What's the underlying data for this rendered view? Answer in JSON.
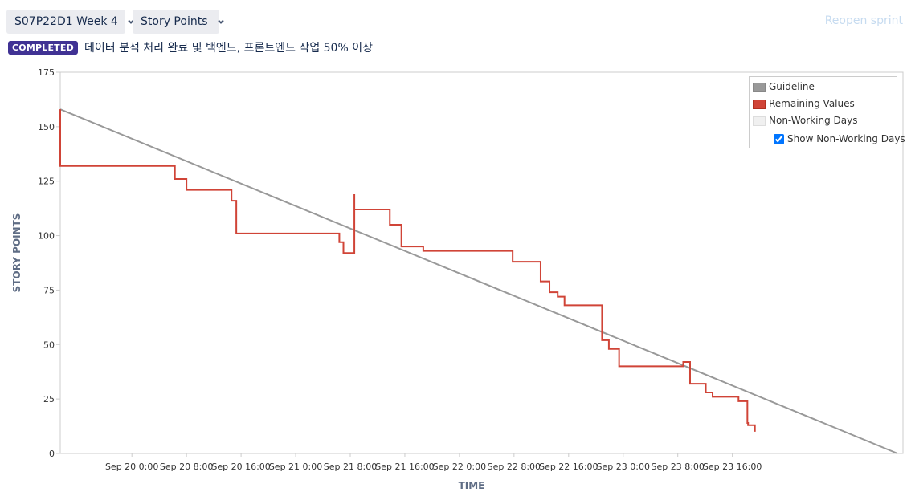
{
  "header": {
    "sprint_select": "S07P22D1 Week 4",
    "metric_select": "Story Points",
    "reopen_label": "Reopen sprint",
    "status_badge": "COMPLETED",
    "sprint_goal": "데이터 분석 처리 완료 및 백엔드, 프론트엔드 작업 50% 이상"
  },
  "legend": {
    "guideline": "Guideline",
    "remaining": "Remaining Values",
    "non_working": "Non-Working Days",
    "show_non_working": "Show Non-Working Days",
    "show_non_working_checked": true
  },
  "colors": {
    "guideline": "#999999",
    "remaining": "#d04437",
    "non_working": "#f0f0f0",
    "checkbox": "#0052cc",
    "badge": "#403294"
  },
  "chart_data": {
    "type": "line",
    "title": "",
    "xlabel": "TIME",
    "ylabel": "STORY POINTS",
    "ylim": [
      0,
      175
    ],
    "yticks": [
      0,
      25,
      50,
      75,
      100,
      125,
      150,
      175
    ],
    "xlim_hours": [
      -10.5,
      113
    ],
    "x_unit": "hours since Sep 20 0:00",
    "xticks": [
      {
        "label": "Sep 20 0:00",
        "h": 0
      },
      {
        "label": "Sep 20 8:00",
        "h": 8
      },
      {
        "label": "Sep 20 16:00",
        "h": 16
      },
      {
        "label": "Sep 21 0:00",
        "h": 24
      },
      {
        "label": "Sep 21 8:00",
        "h": 32
      },
      {
        "label": "Sep 21 16:00",
        "h": 40
      },
      {
        "label": "Sep 22 0:00",
        "h": 48
      },
      {
        "label": "Sep 22 8:00",
        "h": 56
      },
      {
        "label": "Sep 22 16:00",
        "h": 64
      },
      {
        "label": "Sep 23 0:00",
        "h": 72
      },
      {
        "label": "Sep 23 8:00",
        "h": 80
      },
      {
        "label": "Sep 23 16:00",
        "h": 88
      }
    ],
    "series": [
      {
        "name": "Guideline",
        "points": [
          [
            -10.5,
            158
          ],
          [
            112.2,
            0
          ]
        ]
      },
      {
        "name": "Remaining Values",
        "step": true,
        "points": [
          [
            -10.5,
            132
          ],
          [
            -10.5,
            158
          ],
          [
            -10.5,
            132
          ],
          [
            6.3,
            132
          ],
          [
            6.3,
            126
          ],
          [
            8.0,
            126
          ],
          [
            8.0,
            121
          ],
          [
            14.6,
            121
          ],
          [
            14.6,
            116
          ],
          [
            15.3,
            116
          ],
          [
            15.3,
            101
          ],
          [
            30.4,
            101
          ],
          [
            30.4,
            97
          ],
          [
            31.0,
            97
          ],
          [
            31.0,
            92
          ],
          [
            32.6,
            92
          ],
          [
            32.6,
            119
          ],
          [
            32.6,
            112
          ],
          [
            37.8,
            112
          ],
          [
            37.8,
            105
          ],
          [
            39.5,
            105
          ],
          [
            39.5,
            95
          ],
          [
            42.7,
            95
          ],
          [
            42.7,
            93
          ],
          [
            55.8,
            93
          ],
          [
            55.8,
            88
          ],
          [
            59.9,
            88
          ],
          [
            59.9,
            79
          ],
          [
            61.2,
            79
          ],
          [
            61.2,
            74
          ],
          [
            62.4,
            74
          ],
          [
            62.4,
            72
          ],
          [
            63.4,
            72
          ],
          [
            63.4,
            68
          ],
          [
            68.9,
            68
          ],
          [
            68.9,
            52
          ],
          [
            69.9,
            52
          ],
          [
            69.9,
            48
          ],
          [
            71.4,
            48
          ],
          [
            71.4,
            40
          ],
          [
            80.8,
            40
          ],
          [
            80.8,
            42
          ],
          [
            81.8,
            42
          ],
          [
            81.8,
            32
          ],
          [
            84.1,
            32
          ],
          [
            84.1,
            28
          ],
          [
            85.1,
            28
          ],
          [
            85.1,
            26
          ],
          [
            88.9,
            26
          ],
          [
            88.9,
            24
          ],
          [
            90.2,
            24
          ],
          [
            90.2,
            14
          ],
          [
            90.3,
            14
          ],
          [
            90.3,
            13
          ],
          [
            91.3,
            13
          ],
          [
            91.3,
            10
          ]
        ]
      }
    ],
    "legend_position": "top-right",
    "grid": false
  }
}
